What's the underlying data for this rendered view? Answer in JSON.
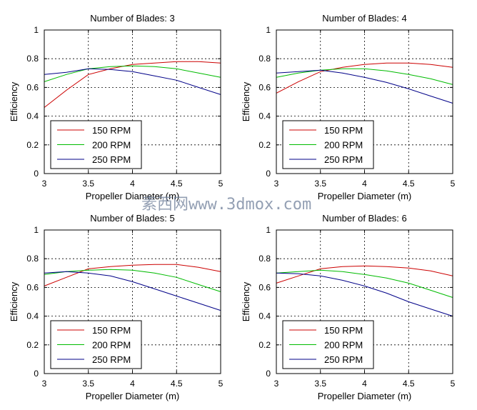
{
  "chart_data": [
    {
      "type": "line",
      "title": "Number of Blades: 3",
      "xlabel": "Propeller Diameter (m)",
      "ylabel": "Efficiency",
      "xlim": [
        3,
        5
      ],
      "ylim": [
        0,
        1
      ],
      "xticks": [
        "3",
        "3.5",
        "4",
        "4.5",
        "5"
      ],
      "yticks": [
        "0",
        "0.2",
        "0.4",
        "0.6",
        "0.8",
        "1"
      ],
      "grid": true,
      "legend_position": "bottom-left",
      "x": [
        3,
        3.25,
        3.5,
        3.75,
        4,
        4.25,
        4.5,
        4.75,
        5
      ],
      "series": [
        {
          "name": "150 RPM",
          "color": "#cc0000",
          "values": [
            0.46,
            0.58,
            0.69,
            0.73,
            0.76,
            0.77,
            0.78,
            0.78,
            0.77
          ]
        },
        {
          "name": "200 RPM",
          "color": "#00bb00",
          "values": [
            0.64,
            0.69,
            0.73,
            0.745,
            0.75,
            0.745,
            0.73,
            0.7,
            0.67
          ]
        },
        {
          "name": "250 RPM",
          "color": "#000088",
          "values": [
            0.69,
            0.705,
            0.73,
            0.725,
            0.71,
            0.68,
            0.65,
            0.6,
            0.55
          ]
        }
      ]
    },
    {
      "type": "line",
      "title": "Number of Blades: 4",
      "xlabel": "Propeller Diameter (m)",
      "ylabel": "Efficiency",
      "xlim": [
        3,
        5
      ],
      "ylim": [
        0,
        1
      ],
      "xticks": [
        "3",
        "3.5",
        "4",
        "4.5",
        "5"
      ],
      "yticks": [
        "0",
        "0.2",
        "0.4",
        "0.6",
        "0.8",
        "1"
      ],
      "grid": true,
      "legend_position": "bottom-left",
      "x": [
        3,
        3.25,
        3.5,
        3.75,
        4,
        4.25,
        4.5,
        4.75,
        5
      ],
      "series": [
        {
          "name": "150 RPM",
          "color": "#cc0000",
          "values": [
            0.56,
            0.64,
            0.71,
            0.74,
            0.76,
            0.77,
            0.77,
            0.76,
            0.74
          ]
        },
        {
          "name": "200 RPM",
          "color": "#00bb00",
          "values": [
            0.67,
            0.7,
            0.72,
            0.73,
            0.73,
            0.715,
            0.69,
            0.66,
            0.62
          ]
        },
        {
          "name": "250 RPM",
          "color": "#000088",
          "values": [
            0.7,
            0.71,
            0.72,
            0.7,
            0.67,
            0.635,
            0.59,
            0.54,
            0.49
          ]
        }
      ]
    },
    {
      "type": "line",
      "title": "Number of Blades: 5",
      "xlabel": "Propeller Diameter (m)",
      "ylabel": "Efficiency",
      "xlim": [
        3,
        5
      ],
      "ylim": [
        0,
        1
      ],
      "xticks": [
        "3",
        "3.5",
        "4",
        "4.5",
        "5"
      ],
      "yticks": [
        "0",
        "0.2",
        "0.4",
        "0.6",
        "0.8",
        "1"
      ],
      "grid": true,
      "legend_position": "bottom-left",
      "x": [
        3,
        3.25,
        3.5,
        3.75,
        4,
        4.25,
        4.5,
        4.75,
        5
      ],
      "series": [
        {
          "name": "150 RPM",
          "color": "#cc0000",
          "values": [
            0.61,
            0.67,
            0.73,
            0.745,
            0.755,
            0.76,
            0.76,
            0.74,
            0.71
          ]
        },
        {
          "name": "200 RPM",
          "color": "#00bb00",
          "values": [
            0.69,
            0.71,
            0.72,
            0.725,
            0.72,
            0.7,
            0.67,
            0.62,
            0.57
          ]
        },
        {
          "name": "250 RPM",
          "color": "#000088",
          "values": [
            0.7,
            0.71,
            0.7,
            0.68,
            0.64,
            0.59,
            0.54,
            0.49,
            0.44
          ]
        }
      ]
    },
    {
      "type": "line",
      "title": "Number of Blades: 6",
      "xlabel": "Propeller Diameter (m)",
      "ylabel": "Efficiency",
      "xlim": [
        3,
        5
      ],
      "ylim": [
        0,
        1
      ],
      "xticks": [
        "3",
        "3.5",
        "4",
        "4.5",
        "5"
      ],
      "yticks": [
        "0",
        "0.2",
        "0.4",
        "0.6",
        "0.8",
        "1"
      ],
      "grid": true,
      "legend_position": "bottom-left",
      "x": [
        3,
        3.25,
        3.5,
        3.75,
        4,
        4.25,
        4.5,
        4.75,
        5
      ],
      "series": [
        {
          "name": "150 RPM",
          "color": "#cc0000",
          "values": [
            0.63,
            0.68,
            0.73,
            0.745,
            0.75,
            0.745,
            0.735,
            0.715,
            0.68
          ]
        },
        {
          "name": "200 RPM",
          "color": "#00bb00",
          "values": [
            0.7,
            0.71,
            0.72,
            0.71,
            0.69,
            0.665,
            0.63,
            0.58,
            0.53
          ]
        },
        {
          "name": "250 RPM",
          "color": "#000088",
          "values": [
            0.7,
            0.695,
            0.68,
            0.65,
            0.61,
            0.56,
            0.5,
            0.45,
            0.4
          ]
        }
      ]
    }
  ],
  "watermark": "素西网www.3dmox.com"
}
